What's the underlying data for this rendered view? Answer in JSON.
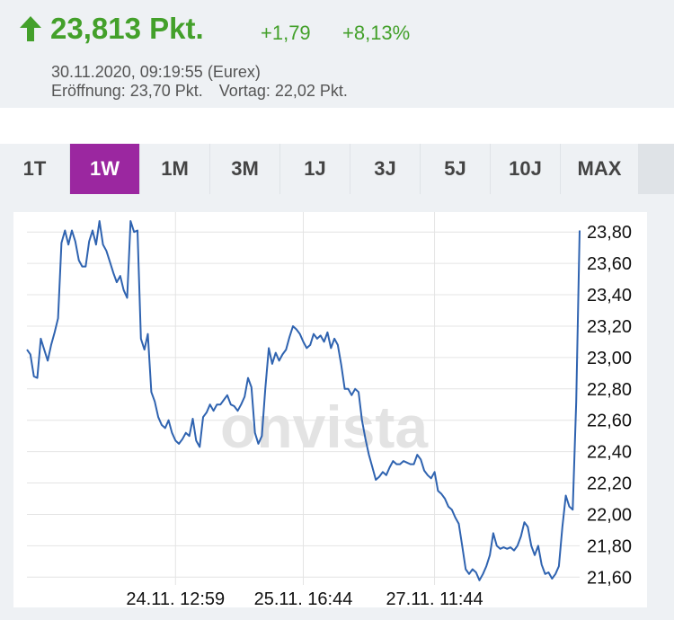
{
  "quote": {
    "price": "23,813 Pkt.",
    "abs_change": "+1,79",
    "pct_change": "+8,13%",
    "timestamp": "30.11.2020, 09:19:55 (Eurex)",
    "open": "Eröffnung: 23,70 Pkt.",
    "prev_close": "Vortag: 22,02 Pkt.",
    "trend": "up",
    "color_positive": "#43a02a"
  },
  "tabs": [
    "1T",
    "1W",
    "1M",
    "3M",
    "1J",
    "3J",
    "5J",
    "10J",
    "MAX"
  ],
  "active_tab": "1W",
  "accent_color": "#9b27a0",
  "watermark": "onvista",
  "chart_data": {
    "type": "line",
    "title": "",
    "xlabel": "",
    "ylabel": "",
    "ylim": [
      21.55,
      23.87
    ],
    "y_ticks": [
      "23,80",
      "23,60",
      "23,40",
      "23,20",
      "23,00",
      "22,80",
      "22,60",
      "22,40",
      "22,20",
      "22,00",
      "21,80",
      "21,60"
    ],
    "y_tick_values": [
      23.8,
      23.6,
      23.4,
      23.2,
      23.0,
      22.8,
      22.6,
      22.4,
      22.2,
      22.0,
      21.8,
      21.6
    ],
    "x_ticks": [
      "24.11. 12:59",
      "25.11. 16:44",
      "27.11. 11:44"
    ],
    "x_tick_positions": [
      43,
      80,
      118
    ],
    "grid": true,
    "line_color": "#2f63b0",
    "series": [
      {
        "values": [
          23.05,
          23.02,
          22.88,
          22.87,
          23.12,
          23.05,
          22.98,
          23.08,
          23.16,
          23.25,
          23.73,
          23.81,
          23.72,
          23.81,
          23.74,
          23.62,
          23.58,
          23.58,
          23.74,
          23.81,
          23.72,
          23.87,
          23.72,
          23.68,
          23.61,
          23.54,
          23.48,
          23.52,
          23.43,
          23.38,
          23.87,
          23.8,
          23.81,
          23.12,
          23.05,
          23.15,
          22.78,
          22.72,
          22.62,
          22.57,
          22.55,
          22.6,
          22.52,
          22.47,
          22.45,
          22.48,
          22.52,
          22.5,
          22.61,
          22.47,
          22.43,
          22.62,
          22.65,
          22.7,
          22.66,
          22.7,
          22.7,
          22.73,
          22.76,
          22.7,
          22.69,
          22.66,
          22.7,
          22.75,
          22.87,
          22.81,
          22.52,
          22.45,
          22.5,
          22.8,
          23.06,
          22.96,
          23.03,
          22.98,
          23.02,
          23.05,
          23.13,
          23.2,
          23.18,
          23.15,
          23.1,
          23.06,
          23.08,
          23.15,
          23.12,
          23.14,
          23.1,
          23.16,
          23.06,
          23.12,
          23.08,
          22.95,
          22.8,
          22.8,
          22.76,
          22.8,
          22.78,
          22.6,
          22.48,
          22.38,
          22.3,
          22.22,
          22.24,
          22.27,
          22.25,
          22.3,
          22.34,
          22.32,
          22.32,
          22.34,
          22.33,
          22.32,
          22.32,
          22.38,
          22.35,
          22.28,
          22.25,
          22.23,
          22.27,
          22.15,
          22.13,
          22.1,
          22.05,
          22.03,
          21.98,
          21.94,
          21.8,
          21.65,
          21.62,
          21.65,
          21.63,
          21.58,
          21.62,
          21.67,
          21.74,
          21.88,
          21.8,
          21.78,
          21.79,
          21.78,
          21.79,
          21.77,
          21.8,
          21.86,
          21.95,
          21.92,
          21.8,
          21.74,
          21.8,
          21.68,
          21.62,
          21.63,
          21.59,
          21.62,
          21.67,
          21.92,
          22.12,
          22.05,
          22.03,
          22.72,
          23.81
        ]
      }
    ]
  }
}
